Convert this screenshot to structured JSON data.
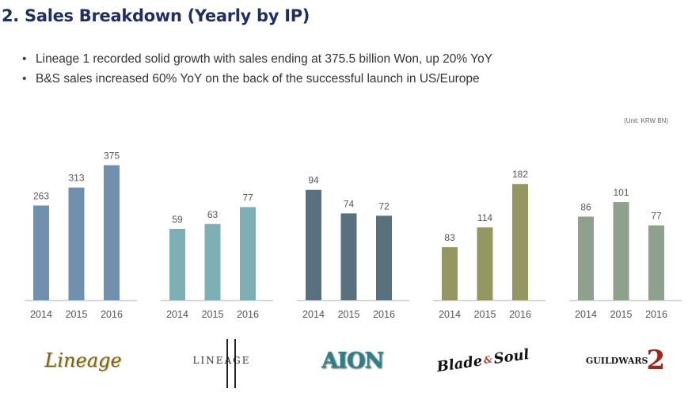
{
  "title": "2. Sales Breakdown (Yearly by IP)",
  "bullets": [
    "Lineage 1 recorded solid growth with sales ending at 375.5 billion Won, up 20% YoY",
    "B&S sales increased 60% YoY on the back of the successful launch in US/Europe"
  ],
  "bullet_glyph": "•",
  "unit_note": "(Unit: KRW BN)",
  "logos": {
    "lineage1": "Lineage",
    "lineage2": "LINEAGE",
    "aion": "AION",
    "bns_left": "Blade",
    "bns_amp": "&",
    "bns_right": "Soul",
    "gw": "GUILDWARS",
    "gw_num": "2"
  },
  "chart_data": [
    {
      "type": "bar",
      "title": "Lineage",
      "categories": [
        "2014",
        "2015",
        "2016"
      ],
      "values": [
        263,
        313,
        375
      ],
      "color": "#7090ad",
      "ylim": [
        0,
        440
      ],
      "grid": false,
      "legend": "none",
      "xlabel": "",
      "ylabel": ""
    },
    {
      "type": "bar",
      "title": "Lineage II",
      "categories": [
        "2014",
        "2015",
        "2016"
      ],
      "values": [
        59,
        63,
        77
      ],
      "color": "#7dafb4",
      "ylim": [
        0,
        131
      ],
      "grid": false,
      "legend": "none",
      "xlabel": "",
      "ylabel": ""
    },
    {
      "type": "bar",
      "title": "AION",
      "categories": [
        "2014",
        "2015",
        "2016"
      ],
      "values": [
        94,
        74,
        72
      ],
      "color": "#59707f",
      "ylim": [
        0,
        135
      ],
      "grid": false,
      "legend": "none",
      "xlabel": "",
      "ylabel": ""
    },
    {
      "type": "bar",
      "title": "Blade & Soul",
      "categories": [
        "2014",
        "2015",
        "2016"
      ],
      "values": [
        83,
        114,
        182
      ],
      "color": "#959762",
      "ylim": [
        0,
        248
      ],
      "grid": false,
      "legend": "none",
      "xlabel": "",
      "ylabel": ""
    },
    {
      "type": "bar",
      "title": "Guild Wars 2",
      "categories": [
        "2014",
        "2015",
        "2016"
      ],
      "values": [
        86,
        101,
        77
      ],
      "color": "#8ea08e",
      "ylim": [
        0,
        163
      ],
      "grid": false,
      "legend": "none",
      "xlabel": "",
      "ylabel": ""
    }
  ]
}
